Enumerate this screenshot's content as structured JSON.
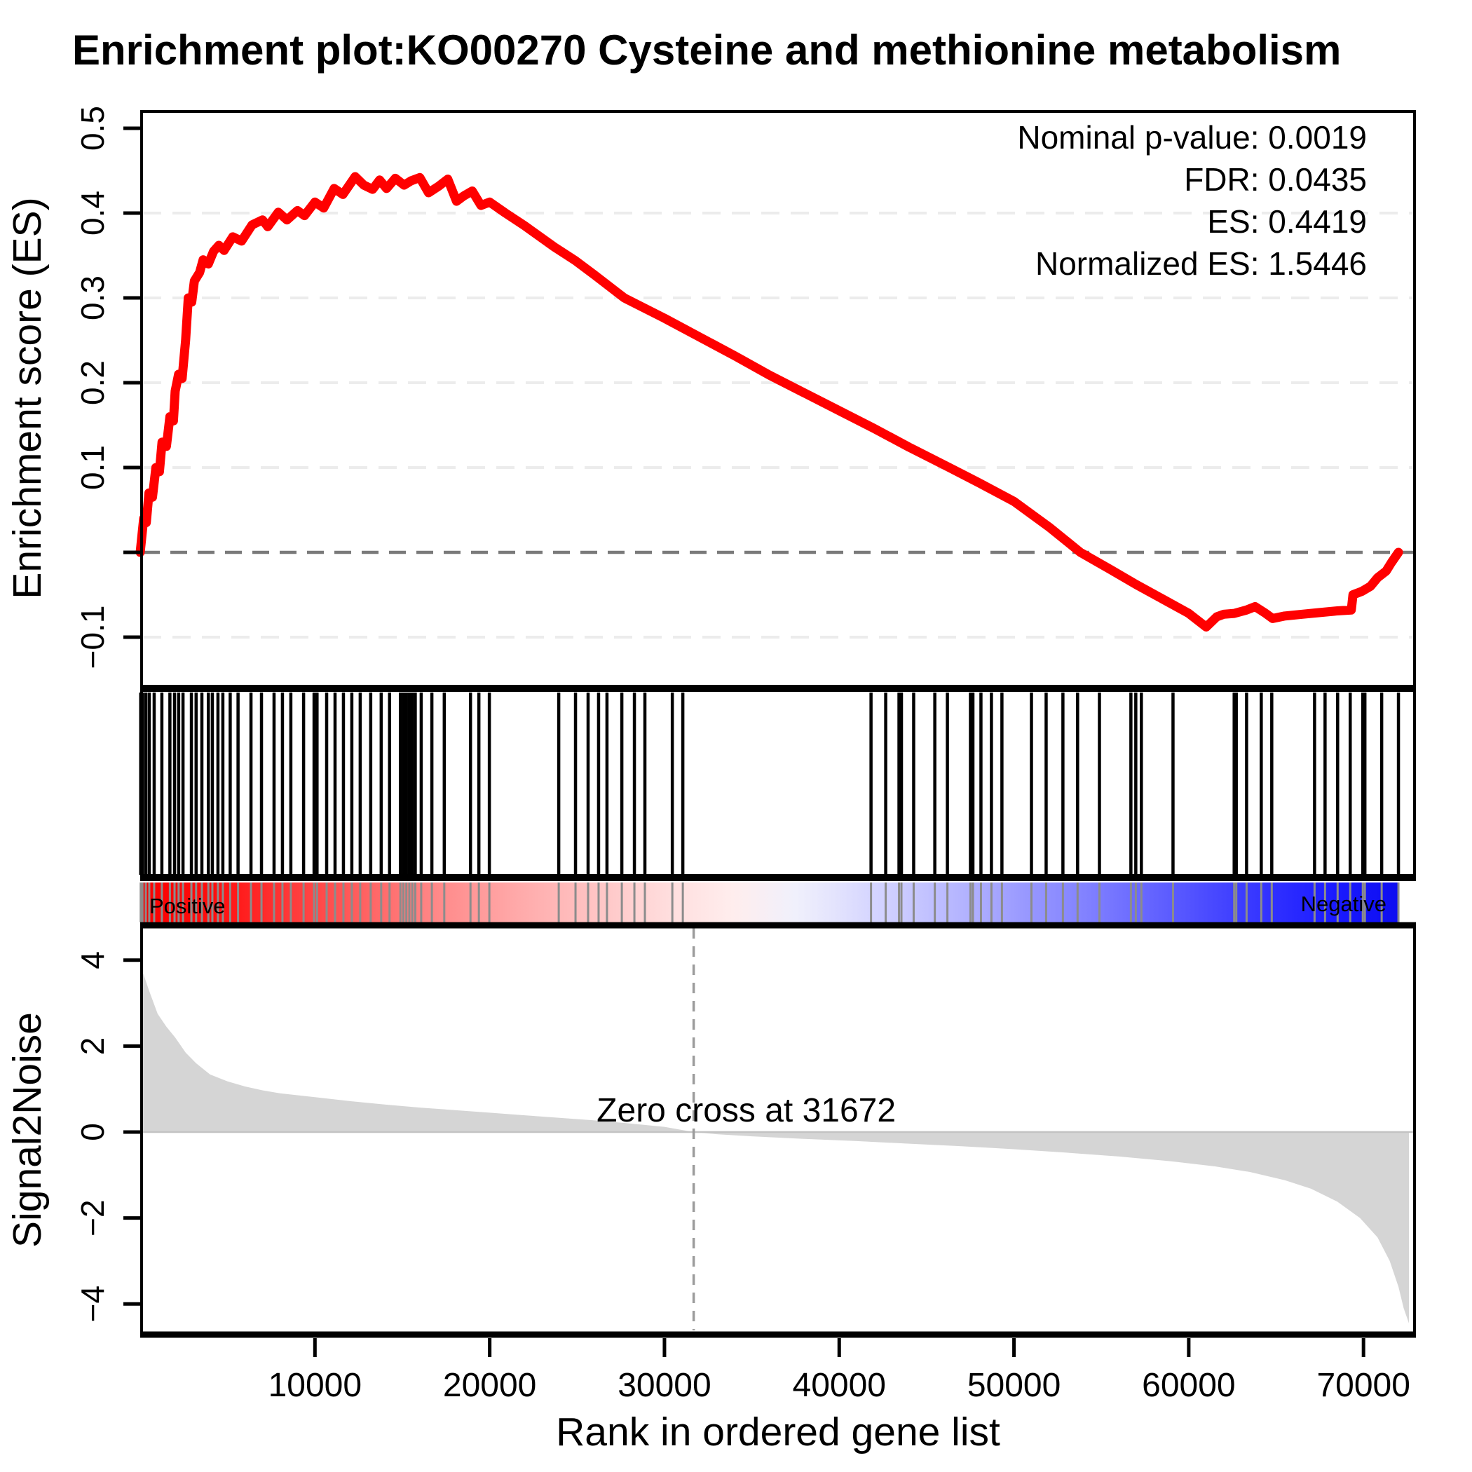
{
  "chart_data": {
    "type": "line",
    "title": "Enrichment plot:KO00270 Cysteine and methionine metabolism",
    "stats": {
      "nominal_p_value": 0.0019,
      "fdr": 0.0435,
      "es": 0.4419,
      "normalized_es": 1.5446,
      "display": [
        "Nominal p-value: 0.0019",
        "FDR: 0.0435",
        "ES: 0.4419",
        "Normalized ES: 1.5446"
      ]
    },
    "x_axis": {
      "label": "Rank in ordered gene list",
      "ticks": [
        10000,
        20000,
        30000,
        40000,
        50000,
        60000,
        70000
      ],
      "axis_max_rank": 73000,
      "last_gene_rank": 72000
    },
    "es_panel": {
      "ylabel": "Enrichment score (ES)",
      "yticks": [
        {
          "v": 0.5,
          "label": "0.5"
        },
        {
          "v": 0.4,
          "label": "0.4"
        },
        {
          "v": 0.3,
          "label": "0.3"
        },
        {
          "v": 0.2,
          "label": "0.2"
        },
        {
          "v": 0.1,
          "label": "0.1"
        },
        {
          "v": 0.0,
          "label": ""
        },
        {
          "v": -0.1,
          "label": "-0.1"
        }
      ],
      "ylim": [
        -0.163,
        0.521
      ],
      "light_gridlines": [
        0.4,
        0.3,
        0.2,
        0.1,
        -0.1
      ],
      "zero_line": 0.0,
      "line_color": "#ff0000",
      "grid_color": "#ececec",
      "zero_dash_color": "#7a7a7a",
      "curve_points": [
        [
          0,
          0.0
        ],
        [
          200,
          0.04
        ],
        [
          350,
          0.035
        ],
        [
          500,
          0.07
        ],
        [
          700,
          0.065
        ],
        [
          900,
          0.1
        ],
        [
          1100,
          0.095
        ],
        [
          1250,
          0.13
        ],
        [
          1500,
          0.125
        ],
        [
          1700,
          0.16
        ],
        [
          1900,
          0.155
        ],
        [
          2000,
          0.19
        ],
        [
          2200,
          0.21
        ],
        [
          2400,
          0.205
        ],
        [
          2600,
          0.25
        ],
        [
          2750,
          0.3
        ],
        [
          2950,
          0.295
        ],
        [
          3100,
          0.32
        ],
        [
          3400,
          0.33
        ],
        [
          3600,
          0.345
        ],
        [
          3900,
          0.34
        ],
        [
          4200,
          0.355
        ],
        [
          4500,
          0.362
        ],
        [
          4800,
          0.356
        ],
        [
          5300,
          0.372
        ],
        [
          5800,
          0.367
        ],
        [
          6400,
          0.386
        ],
        [
          7000,
          0.392
        ],
        [
          7300,
          0.384
        ],
        [
          7900,
          0.401
        ],
        [
          8400,
          0.392
        ],
        [
          9000,
          0.403
        ],
        [
          9400,
          0.397
        ],
        [
          10000,
          0.413
        ],
        [
          10500,
          0.406
        ],
        [
          11100,
          0.429
        ],
        [
          11600,
          0.422
        ],
        [
          12300,
          0.443
        ],
        [
          12800,
          0.433
        ],
        [
          13300,
          0.428
        ],
        [
          13700,
          0.439
        ],
        [
          14100,
          0.429
        ],
        [
          14600,
          0.441
        ],
        [
          15100,
          0.433
        ],
        [
          15500,
          0.438
        ],
        [
          16000,
          0.4419
        ],
        [
          16500,
          0.424
        ],
        [
          17100,
          0.432
        ],
        [
          17600,
          0.44
        ],
        [
          18100,
          0.414
        ],
        [
          18500,
          0.42
        ],
        [
          19000,
          0.426
        ],
        [
          19500,
          0.409
        ],
        [
          20000,
          0.413
        ],
        [
          20900,
          0.4
        ],
        [
          22000,
          0.385
        ],
        [
          23700,
          0.36
        ],
        [
          24300,
          0.352
        ],
        [
          24900,
          0.344
        ],
        [
          26000,
          0.327
        ],
        [
          27700,
          0.3
        ],
        [
          30000,
          0.276
        ],
        [
          32000,
          0.254
        ],
        [
          34000,
          0.232
        ],
        [
          36000,
          0.209
        ],
        [
          38000,
          0.188
        ],
        [
          40000,
          0.167
        ],
        [
          42000,
          0.146
        ],
        [
          44000,
          0.124
        ],
        [
          46300,
          0.1
        ],
        [
          48000,
          0.082
        ],
        [
          50000,
          0.06
        ],
        [
          52000,
          0.03
        ],
        [
          53800,
          0.0
        ],
        [
          55500,
          -0.02
        ],
        [
          57000,
          -0.038
        ],
        [
          58500,
          -0.055
        ],
        [
          60000,
          -0.072
        ],
        [
          61000,
          -0.088
        ],
        [
          61600,
          -0.076
        ],
        [
          62000,
          -0.073
        ],
        [
          62600,
          -0.072
        ],
        [
          63300,
          -0.068
        ],
        [
          63800,
          -0.064
        ],
        [
          64400,
          -0.072
        ],
        [
          64800,
          -0.078
        ],
        [
          65500,
          -0.075
        ],
        [
          66500,
          -0.073
        ],
        [
          67500,
          -0.071
        ],
        [
          68500,
          -0.069
        ],
        [
          69300,
          -0.068
        ],
        [
          69400,
          -0.05
        ],
        [
          69900,
          -0.046
        ],
        [
          70400,
          -0.04
        ],
        [
          70800,
          -0.03
        ],
        [
          71300,
          -0.022
        ],
        [
          71600,
          -0.012
        ],
        [
          72000,
          0.0
        ]
      ]
    },
    "hits_panel": {
      "tick_color": "#000000",
      "hit_ranks": [
        30,
        130,
        320,
        520,
        800,
        1240,
        1700,
        1965,
        2200,
        2450,
        2930,
        3200,
        3530,
        3900,
        4130,
        4450,
        4730,
        5150,
        5600,
        6340,
        6940,
        7660,
        8140,
        8620,
        9350,
        9950,
        10120,
        10670,
        11150,
        11630,
        12110,
        12590,
        13190,
        13790,
        14270,
        14890,
        15060,
        15230,
        15400,
        15570,
        15740,
        16080,
        16690,
        17400,
        18900,
        19380,
        19980,
        23950,
        24910,
        25630,
        26230,
        26710,
        27560,
        28280,
        28880,
        30450,
        31050,
        41820,
        42660,
        43420,
        43560,
        44260,
        45470,
        46190,
        47510,
        47650,
        48110,
        48710,
        49310,
        51000,
        51840,
        52800,
        53640,
        54890,
        56690,
        56970,
        57290,
        59100,
        62600,
        62720,
        63310,
        64150,
        64750,
        67200,
        67800,
        68520,
        69240,
        69960,
        70080,
        71040,
        72000
      ]
    },
    "colorbar": {
      "positive_label": "Positive",
      "negative_label": "Negative",
      "overlay_tick_color": "#8c8c8c",
      "gradient_stops": [
        {
          "pos": 0.0,
          "color": "#fa0000"
        },
        {
          "pos": 0.06,
          "color": "#ff0f0f"
        },
        {
          "pos": 0.1,
          "color": "#ff2d2d"
        },
        {
          "pos": 0.14,
          "color": "#ff4848"
        },
        {
          "pos": 0.19,
          "color": "#ff6b6b"
        },
        {
          "pos": 0.24,
          "color": "#ff8c8c"
        },
        {
          "pos": 0.3,
          "color": "#ffaaaa"
        },
        {
          "pos": 0.36,
          "color": "#ffc4c4"
        },
        {
          "pos": 0.42,
          "color": "#ffdede"
        },
        {
          "pos": 0.47,
          "color": "#ffeded"
        },
        {
          "pos": 0.52,
          "color": "#f0f0fc"
        },
        {
          "pos": 0.55,
          "color": "#e4e4fd"
        },
        {
          "pos": 0.58,
          "color": "#d6d6ff"
        },
        {
          "pos": 0.62,
          "color": "#c4c4ff"
        },
        {
          "pos": 0.66,
          "color": "#b0b0ff"
        },
        {
          "pos": 0.7,
          "color": "#9a9aff"
        },
        {
          "pos": 0.75,
          "color": "#8282ff"
        },
        {
          "pos": 0.8,
          "color": "#6666ff"
        },
        {
          "pos": 0.85,
          "color": "#4a4aff"
        },
        {
          "pos": 0.9,
          "color": "#3030ff"
        },
        {
          "pos": 0.95,
          "color": "#1a1aff"
        },
        {
          "pos": 1.0,
          "color": "#0d0df0"
        }
      ]
    },
    "s2n_panel": {
      "ylabel": "Signal2Noise",
      "yticks": [
        {
          "v": 4,
          "label": "4"
        },
        {
          "v": 2,
          "label": "2"
        },
        {
          "v": 0,
          "label": "0"
        },
        {
          "v": -2,
          "label": "-2"
        },
        {
          "v": -4,
          "label": "-4"
        }
      ],
      "ylim": [
        -4.7,
        4.7
      ],
      "area_color": "#d5d5d5",
      "zero_line_color": "#c3c3c3",
      "zero_cross": {
        "label": "Zero cross at 31672",
        "rank": 31672
      },
      "dashed_line_color": "#9c9c9c",
      "area_points": [
        [
          0,
          3.9
        ],
        [
          500,
          3.3
        ],
        [
          1000,
          2.75
        ],
        [
          1500,
          2.45
        ],
        [
          2000,
          2.2
        ],
        [
          2600,
          1.85
        ],
        [
          3200,
          1.6
        ],
        [
          4000,
          1.34
        ],
        [
          5000,
          1.18
        ],
        [
          6000,
          1.06
        ],
        [
          7000,
          0.97
        ],
        [
          8000,
          0.9
        ],
        [
          10000,
          0.81
        ],
        [
          12000,
          0.72
        ],
        [
          14000,
          0.64
        ],
        [
          16000,
          0.57
        ],
        [
          18000,
          0.51
        ],
        [
          20000,
          0.45
        ],
        [
          22000,
          0.39
        ],
        [
          24000,
          0.33
        ],
        [
          26000,
          0.27
        ],
        [
          28000,
          0.2
        ],
        [
          30000,
          0.12
        ],
        [
          31672,
          0.0
        ],
        [
          33000,
          -0.05
        ],
        [
          35000,
          -0.1
        ],
        [
          38000,
          -0.16
        ],
        [
          41000,
          -0.21
        ],
        [
          44000,
          -0.27
        ],
        [
          47000,
          -0.33
        ],
        [
          50000,
          -0.4
        ],
        [
          53000,
          -0.48
        ],
        [
          56000,
          -0.57
        ],
        [
          59000,
          -0.68
        ],
        [
          61500,
          -0.8
        ],
        [
          63500,
          -0.93
        ],
        [
          65500,
          -1.12
        ],
        [
          67000,
          -1.32
        ],
        [
          68500,
          -1.62
        ],
        [
          69800,
          -2.0
        ],
        [
          70800,
          -2.45
        ],
        [
          71500,
          -3.0
        ],
        [
          72000,
          -3.6
        ],
        [
          72300,
          -4.1
        ],
        [
          72600,
          -4.45
        ]
      ]
    }
  }
}
